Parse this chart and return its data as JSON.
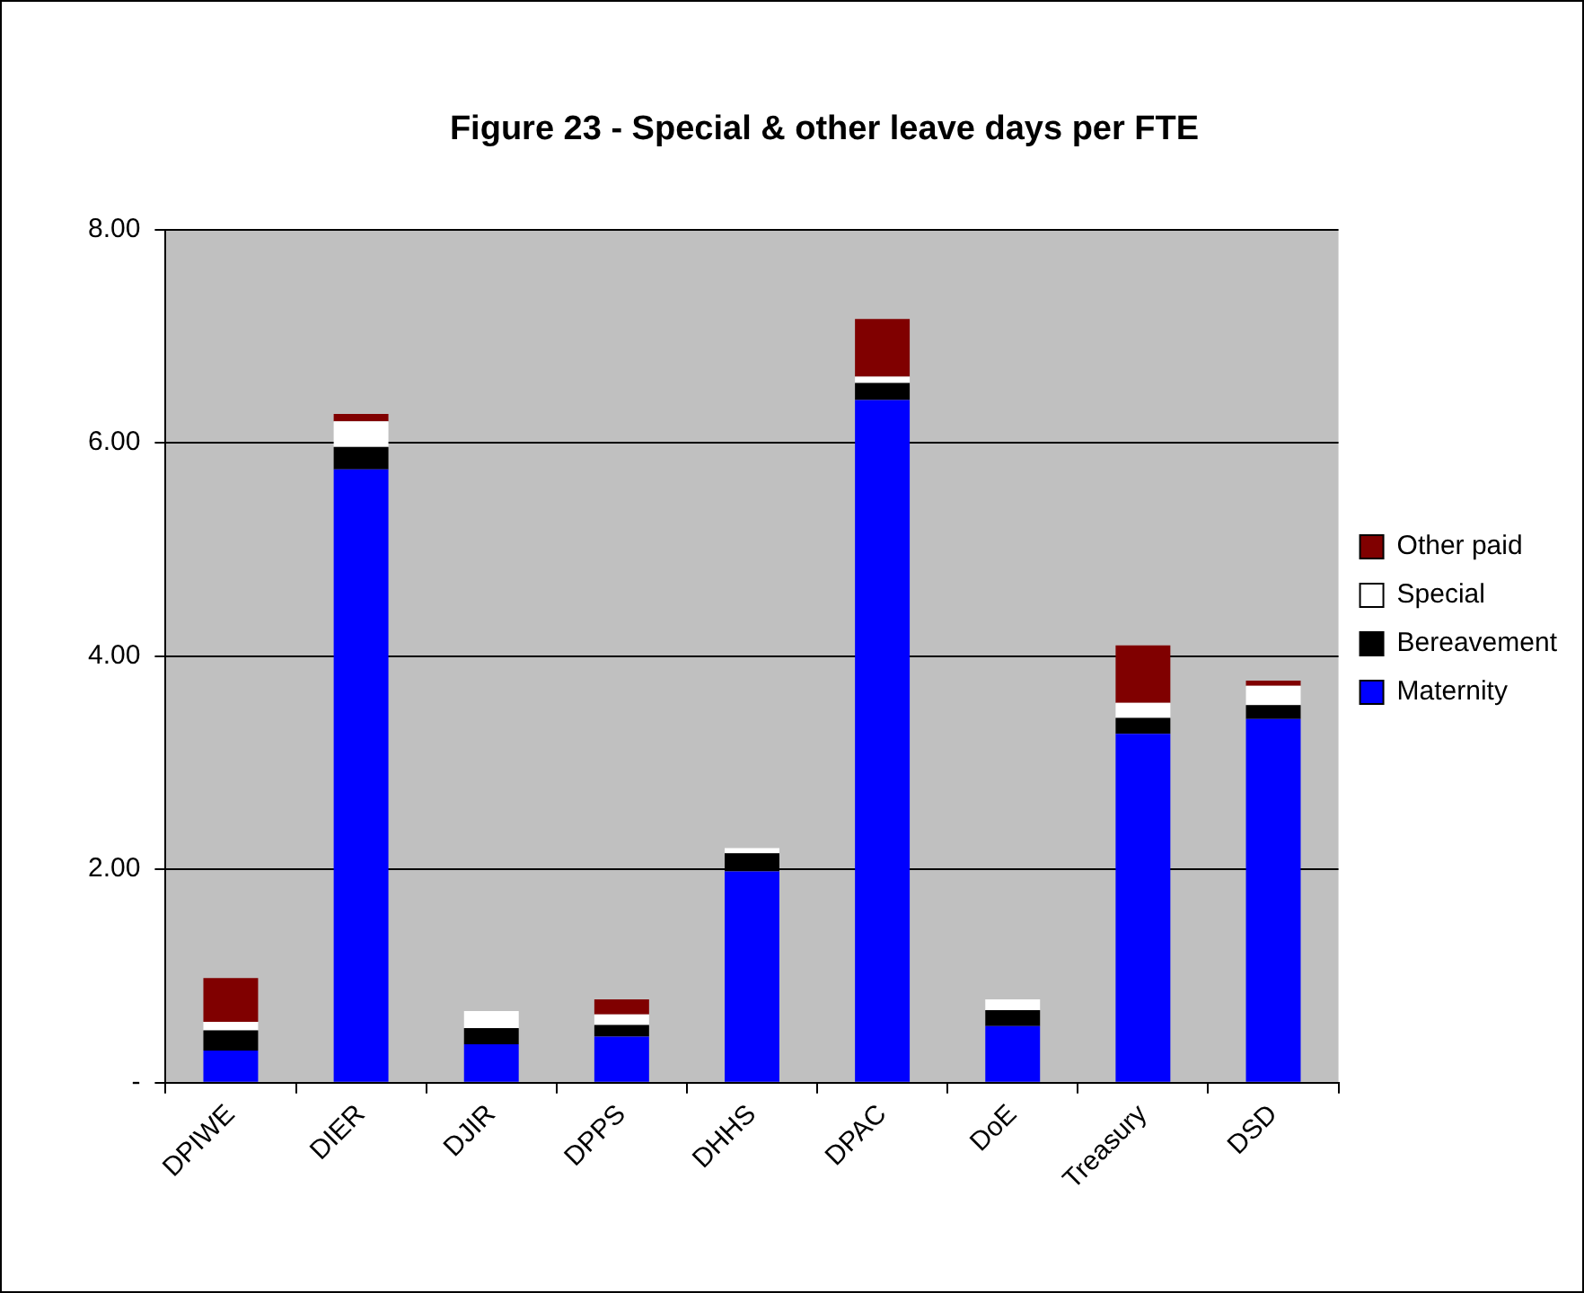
{
  "chart_data": {
    "type": "bar",
    "title": "Figure 23 - Special & other leave days per FTE",
    "stacked": true,
    "categories": [
      "DPIWE",
      "DIER",
      "DJIR",
      "DPPS",
      "DHHS",
      "DPAC",
      "DoE",
      "Treasury",
      "DSD"
    ],
    "series": [
      {
        "name": "Maternity",
        "color": "#0000ff",
        "values": [
          0.3,
          5.75,
          0.36,
          0.43,
          1.98,
          6.4,
          0.53,
          3.27,
          3.41
        ]
      },
      {
        "name": "Bereavement",
        "color": "#000000",
        "values": [
          0.19,
          0.21,
          0.15,
          0.11,
          0.17,
          0.16,
          0.15,
          0.15,
          0.13
        ]
      },
      {
        "name": "Special",
        "color": "#ffffff",
        "values": [
          0.08,
          0.24,
          0.16,
          0.1,
          0.05,
          0.06,
          0.1,
          0.14,
          0.18
        ]
      },
      {
        "name": "Other paid",
        "color": "#800000",
        "values": [
          0.41,
          0.07,
          0,
          0.14,
          0,
          0.54,
          0,
          0.54,
          0.05
        ]
      }
    ],
    "ylim": [
      0,
      8
    ],
    "yticks": [
      {
        "value": 0,
        "label": "-"
      },
      {
        "value": 2,
        "label": "2.00"
      },
      {
        "value": 4,
        "label": "4.00"
      },
      {
        "value": 6,
        "label": "6.00"
      },
      {
        "value": 8,
        "label": "8.00"
      }
    ],
    "grid": "y",
    "legend": "right"
  }
}
